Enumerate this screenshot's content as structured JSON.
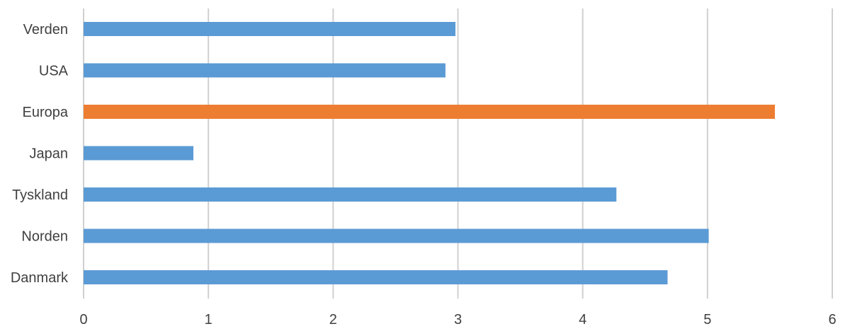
{
  "chart_data": {
    "type": "bar",
    "orientation": "horizontal",
    "categories": [
      "Verden",
      "USA",
      "Europa",
      "Japan",
      "Tyskland",
      "Norden",
      "Danmark"
    ],
    "values": [
      2.98,
      2.9,
      5.54,
      0.88,
      4.27,
      5.01,
      4.68
    ],
    "bar_colors": [
      "#5b9bd5",
      "#5b9bd5",
      "#ed7d31",
      "#5b9bd5",
      "#5b9bd5",
      "#5b9bd5",
      "#5b9bd5"
    ],
    "xlim": [
      0,
      6
    ],
    "x_ticks": [
      "0",
      "1",
      "2",
      "3",
      "4",
      "5",
      "6"
    ],
    "grid": true,
    "legend": "none"
  }
}
